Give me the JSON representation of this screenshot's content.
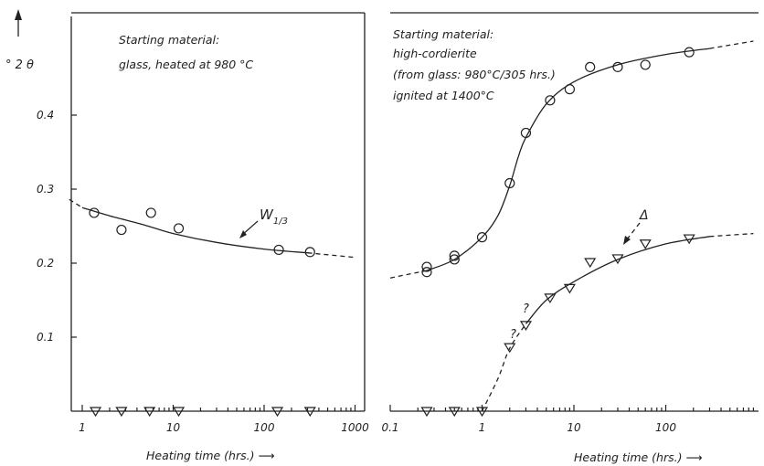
{
  "chart_data": [
    {
      "type": "scatter",
      "panel": "left",
      "ylabel": "° 2 θ",
      "xlabel": "Heating time (hrs.) ⟶",
      "x_scale": "log",
      "xlim": [
        0.7,
        1000
      ],
      "ylim": [
        0,
        0.52
      ],
      "x_ticks": [
        1,
        10,
        100,
        1000
      ],
      "x_tick_labels": [
        "1",
        "10",
        "100",
        "1000"
      ],
      "y_ticks": [
        0.1,
        0.2,
        0.3,
        0.4
      ],
      "y_tick_labels": [
        "0.1",
        "0.2",
        "0.3",
        "0.4"
      ],
      "annotations": [
        "Starting material:",
        "glass, heated at 980 °C"
      ],
      "curve_label": "W1/3",
      "series": [
        {
          "marker": "circle",
          "x": [
            1.35,
            2.7,
            5.7,
            11.5,
            145,
            320
          ],
          "y": [
            0.268,
            0.245,
            0.268,
            0.247,
            0.218,
            0.215
          ]
        },
        {
          "marker": "triangle-down",
          "x": [
            1.4,
            2.7,
            5.5,
            11.5,
            140,
            320
          ],
          "y": [
            0,
            0,
            0,
            0,
            0,
            0
          ]
        }
      ],
      "fit_curve": {
        "x": [
          1,
          2,
          5,
          10,
          30,
          100,
          300
        ],
        "y": [
          0.275,
          0.264,
          0.251,
          0.24,
          0.228,
          0.219,
          0.214
        ]
      },
      "fit_dashed": {
        "x": [
          [
            0.72,
            1
          ],
          [
            300,
            950
          ]
        ],
        "y": [
          [
            0.286,
            0.275
          ],
          [
            0.214,
            0.208
          ]
        ]
      }
    },
    {
      "type": "scatter",
      "panel": "right",
      "xlabel": "Heating time (hrs.) ⟶",
      "x_scale": "log",
      "xlim": [
        0.1,
        900
      ],
      "ylim": [
        0,
        0.52
      ],
      "x_ticks": [
        0.1,
        1,
        10,
        100
      ],
      "x_tick_labels": [
        "0.1",
        "1",
        "10",
        "100"
      ],
      "annotations": [
        "Starting material:",
        "high-cordierite",
        "(from glass: 980°C/305 hrs.)",
        "ignited at 1400°C"
      ],
      "question_marks": [
        "?",
        "?"
      ],
      "delta_label": "Δ",
      "series": [
        {
          "marker": "circle",
          "x": [
            0.25,
            0.25,
            0.5,
            0.5,
            1,
            2,
            3,
            5.5,
            9,
            15,
            30,
            60,
            180
          ],
          "y": [
            0.195,
            0.188,
            0.21,
            0.205,
            0.235,
            0.308,
            0.376,
            0.42,
            0.435,
            0.465,
            0.465,
            0.468,
            0.485
          ]
        },
        {
          "marker": "triangle-down",
          "x": [
            2,
            3,
            5.5,
            9,
            15,
            30,
            60,
            180
          ],
          "y": [
            0.085,
            0.115,
            0.152,
            0.165,
            0.2,
            0.205,
            0.225,
            0.232
          ]
        },
        {
          "marker": "triangle-down",
          "x": [
            0.25,
            0.5,
            1
          ],
          "y": [
            0,
            0,
            0
          ]
        }
      ],
      "fit_curve_circles": {
        "x": [
          0.25,
          0.5,
          1,
          1.5,
          2,
          2.5,
          3,
          5,
          10,
          30,
          100,
          300
        ],
        "y": [
          0.19,
          0.205,
          0.235,
          0.265,
          0.305,
          0.345,
          0.37,
          0.415,
          0.445,
          0.468,
          0.482,
          0.49
        ]
      },
      "fit_dashed_circles": {
        "x": [
          [
            0.1,
            0.25
          ],
          [
            300,
            900
          ]
        ],
        "y": [
          [
            0.18,
            0.19
          ],
          [
            0.49,
            0.5
          ]
        ]
      },
      "fit_curve_triangles": {
        "x": [
          3,
          5,
          10,
          30,
          100,
          300
        ],
        "y": [
          0.118,
          0.15,
          0.175,
          0.205,
          0.226,
          0.236
        ]
      },
      "fit_dashed_triangles": {
        "x": [
          [
            1,
            1.5,
            2,
            3
          ],
          [
            300,
            900
          ]
        ],
        "y": [
          [
            0,
            0.045,
            0.085,
            0.118
          ],
          [
            0.236,
            0.24
          ]
        ]
      }
    }
  ]
}
